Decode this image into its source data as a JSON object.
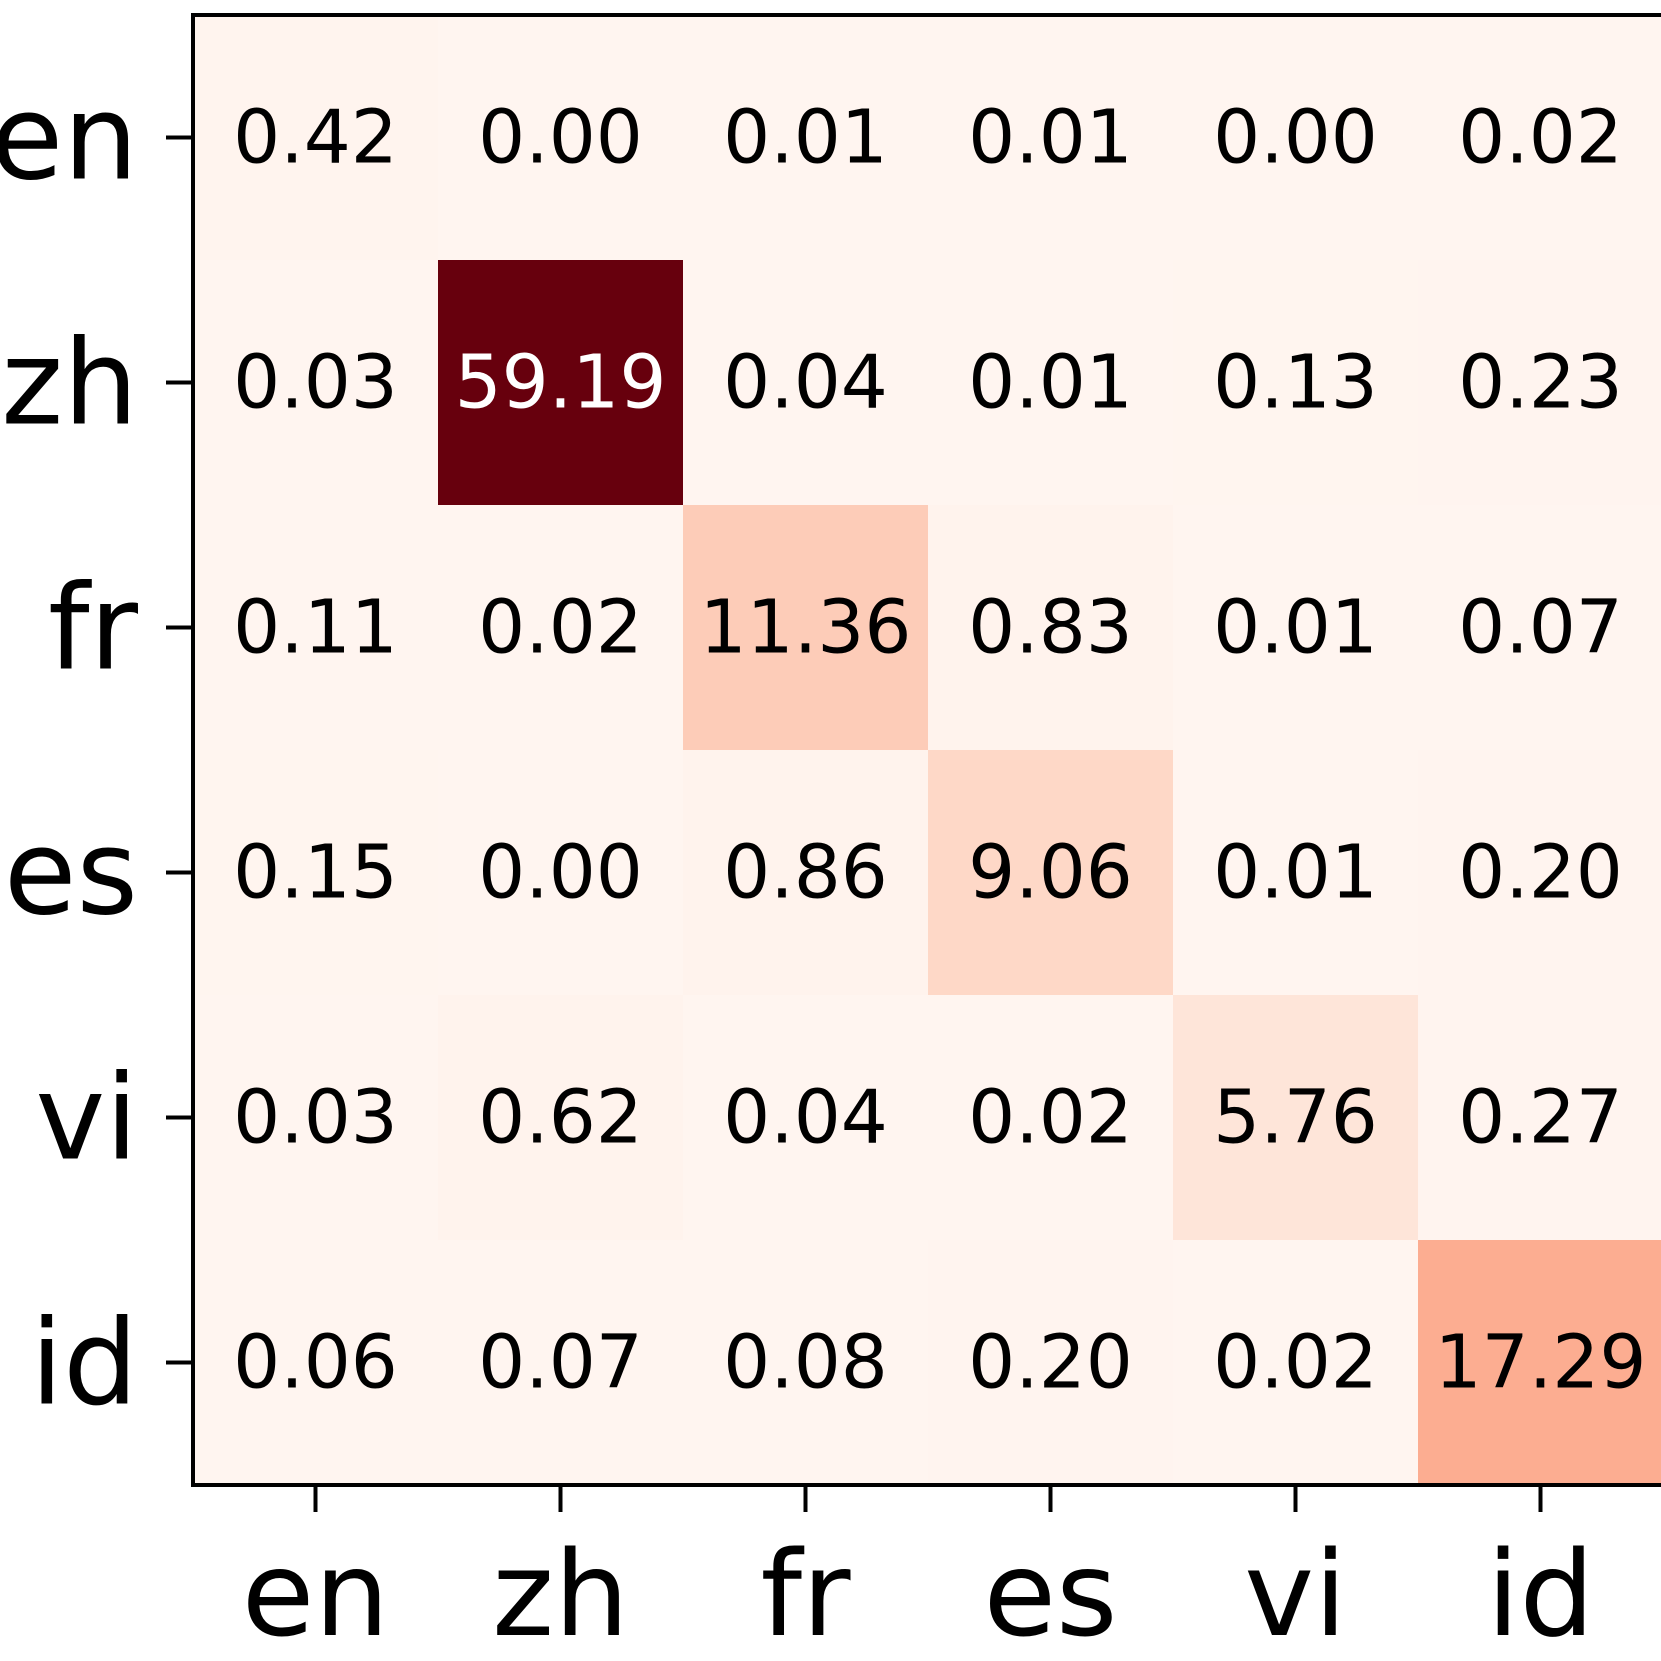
{
  "chart_data": {
    "type": "heatmap",
    "title": "",
    "xlabel": "",
    "ylabel": "",
    "x_categories": [
      "en",
      "zh",
      "fr",
      "es",
      "vi",
      "id"
    ],
    "y_categories": [
      "en",
      "zh",
      "fr",
      "es",
      "vi",
      "id"
    ],
    "values": [
      [
        0.42,
        0.0,
        0.01,
        0.01,
        0.0,
        0.02
      ],
      [
        0.03,
        59.19,
        0.04,
        0.01,
        0.13,
        0.23
      ],
      [
        0.11,
        0.02,
        11.36,
        0.83,
        0.01,
        0.07
      ],
      [
        0.15,
        0.0,
        0.86,
        9.06,
        0.01,
        0.2
      ],
      [
        0.03,
        0.62,
        0.04,
        0.02,
        5.76,
        0.27
      ],
      [
        0.06,
        0.07,
        0.08,
        0.2,
        0.02,
        17.29
      ]
    ],
    "labels": [
      [
        "0.42",
        "0.00",
        "0.01",
        "0.01",
        "0.00",
        "0.02"
      ],
      [
        "0.03",
        "59.19",
        "0.04",
        "0.01",
        "0.13",
        "0.23"
      ],
      [
        "0.11",
        "0.02",
        "11.36",
        "0.83",
        "0.01",
        "0.07"
      ],
      [
        "0.15",
        "0.00",
        "0.86",
        "9.06",
        "0.01",
        "0.20"
      ],
      [
        "0.03",
        "0.62",
        "0.04",
        "0.02",
        "5.76",
        "0.27"
      ],
      [
        "0.06",
        "0.07",
        "0.08",
        "0.20",
        "0.02",
        "17.29"
      ]
    ],
    "colormap": "Reds",
    "color_range": [
      0,
      59.19
    ],
    "colorbar": false,
    "grid": false,
    "colors": {
      "low": "#fff5f0",
      "high": "#67000d",
      "text_dark": "#000000",
      "text_light": "#ffffff",
      "frame": "#000000"
    }
  }
}
